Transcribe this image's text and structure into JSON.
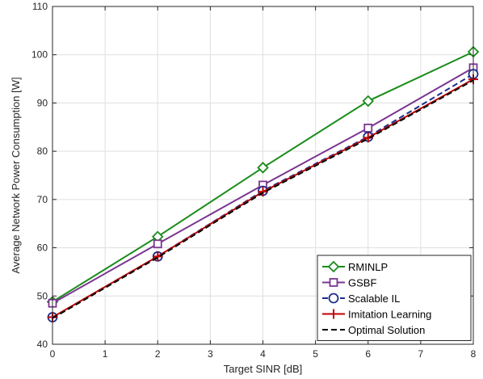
{
  "chart_data": {
    "type": "line",
    "xlabel": "Target SINR [dB]",
    "ylabel": "Average Network Power Consumption [W]",
    "xlim": [
      0,
      8
    ],
    "ylim": [
      40,
      110
    ],
    "xticks": [
      "0",
      "1",
      "2",
      "3",
      "4",
      "5",
      "6",
      "7",
      "8"
    ],
    "yticks": [
      "40",
      "50",
      "60",
      "70",
      "80",
      "90",
      "100",
      "110"
    ],
    "grid": true,
    "legend_position": "bottom-right",
    "x": [
      0,
      2,
      4,
      6,
      8
    ],
    "series": [
      {
        "name": "RMINLP",
        "values": [
          48.8,
          62.3,
          76.6,
          90.4,
          100.6
        ],
        "color": "#1a8c1a",
        "marker": "diamond",
        "dash": "solid"
      },
      {
        "name": "GSBF",
        "values": [
          48.5,
          60.8,
          73.0,
          84.8,
          97.3
        ],
        "color": "#7a3590",
        "marker": "square",
        "dash": "solid"
      },
      {
        "name": "Scalable IL",
        "values": [
          45.6,
          58.2,
          71.8,
          83.0,
          96.0
        ],
        "color": "#1c2d8c",
        "marker": "circle",
        "dash": "dashed"
      },
      {
        "name": "Imitation Learning",
        "values": [
          45.6,
          58.2,
          71.6,
          82.8,
          94.9
        ],
        "color": "#c00000",
        "marker": "plus",
        "dash": "solid"
      },
      {
        "name": "Optimal Solution",
        "values": [
          45.4,
          58.0,
          71.4,
          82.6,
          94.7
        ],
        "color": "#000000",
        "marker": "none",
        "dash": "dashed"
      }
    ]
  }
}
